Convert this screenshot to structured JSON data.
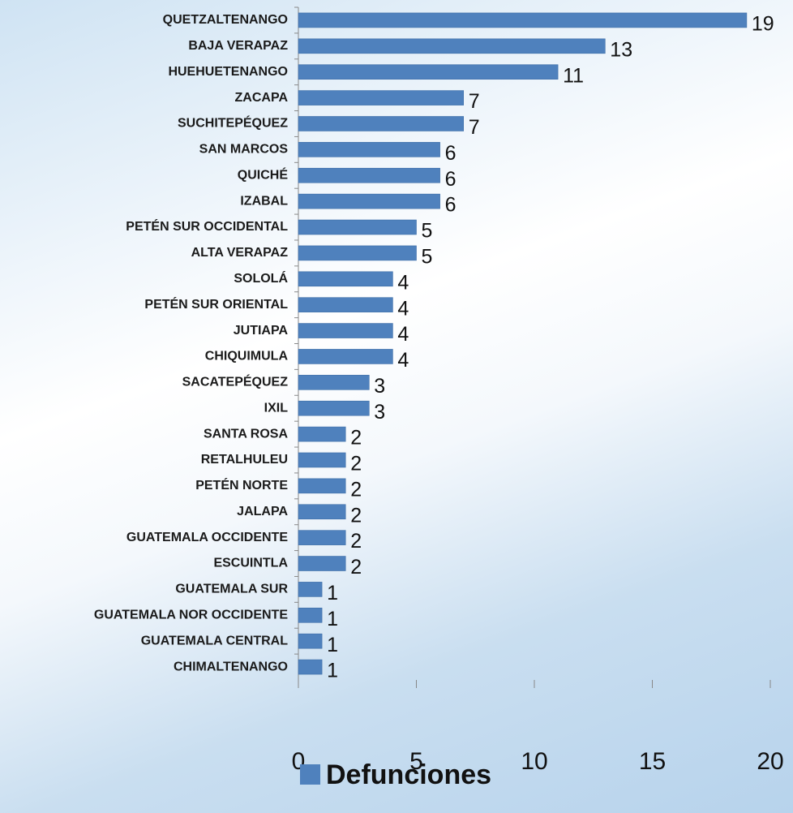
{
  "chart_data": {
    "type": "bar",
    "orientation": "horizontal",
    "categories": [
      "QUETZALTENANGO",
      "BAJA VERAPAZ",
      "HUEHUETENANGO",
      "ZACAPA",
      "SUCHITEPÉQUEZ",
      "SAN MARCOS",
      "QUICHÉ",
      "IZABAL",
      "PETÉN SUR OCCIDENTAL",
      "ALTA VERAPAZ",
      "SOLOLÁ",
      "PETÉN SUR ORIENTAL",
      "JUTIAPA",
      "CHIQUIMULA",
      "SACATEPÉQUEZ",
      "IXIL",
      "SANTA ROSA",
      "RETALHULEU",
      "PETÉN NORTE",
      "JALAPA",
      "GUATEMALA OCCIDENTE",
      "ESCUINTLA",
      "GUATEMALA SUR",
      "GUATEMALA NOR OCCIDENTE",
      "GUATEMALA CENTRAL",
      "CHIMALTENANGO"
    ],
    "series": [
      {
        "name": "Defunciones",
        "color": "#4f81bd",
        "values": [
          19,
          13,
          11,
          7,
          7,
          6,
          6,
          6,
          5,
          5,
          4,
          4,
          4,
          4,
          3,
          3,
          2,
          2,
          2,
          2,
          2,
          2,
          1,
          1,
          1,
          1
        ]
      }
    ],
    "xlim": [
      0,
      20
    ],
    "xticks": [
      0,
      5,
      10,
      15,
      20
    ],
    "legend": "bottom"
  }
}
